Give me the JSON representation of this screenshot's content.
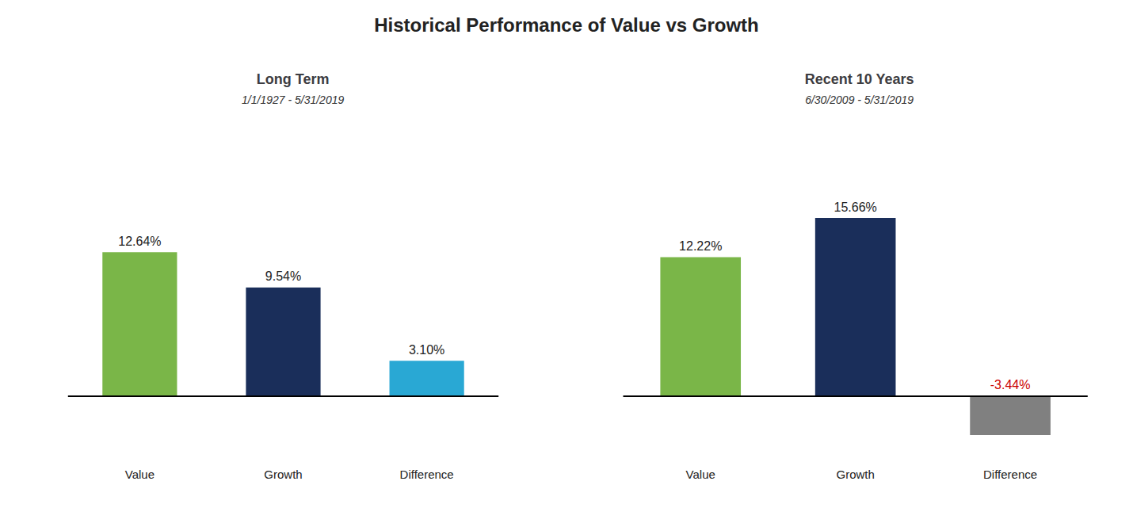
{
  "title": "Historical Performance of Value vs Growth",
  "chart_data": [
    {
      "type": "bar",
      "title": "Long Term",
      "subtitle": "1/1/1927 - 5/31/2019",
      "categories": [
        "Value",
        "Growth",
        "Difference"
      ],
      "values": [
        12.64,
        9.54,
        3.1
      ],
      "value_labels": [
        "12.64%",
        "9.54%",
        "3.10%"
      ],
      "colors": [
        "#7ab648",
        "#1a2e5a",
        "#29a8d4"
      ],
      "data_labels": true,
      "ylim": [
        -5.5,
        20
      ],
      "tick_labels": "x",
      "grid": false
    },
    {
      "type": "bar",
      "title": "Recent 10 Years",
      "subtitle": "6/30/2009 - 5/31/2019",
      "categories": [
        "Value",
        "Growth",
        "Difference"
      ],
      "values": [
        12.22,
        15.66,
        -3.44
      ],
      "value_labels": [
        "12.22%",
        "15.66%",
        "-3.44%"
      ],
      "colors": [
        "#7ab648",
        "#1a2e5a",
        "#808080"
      ],
      "data_labels": true,
      "ylim": [
        -5.5,
        20
      ],
      "tick_labels": "x",
      "grid": false
    }
  ]
}
